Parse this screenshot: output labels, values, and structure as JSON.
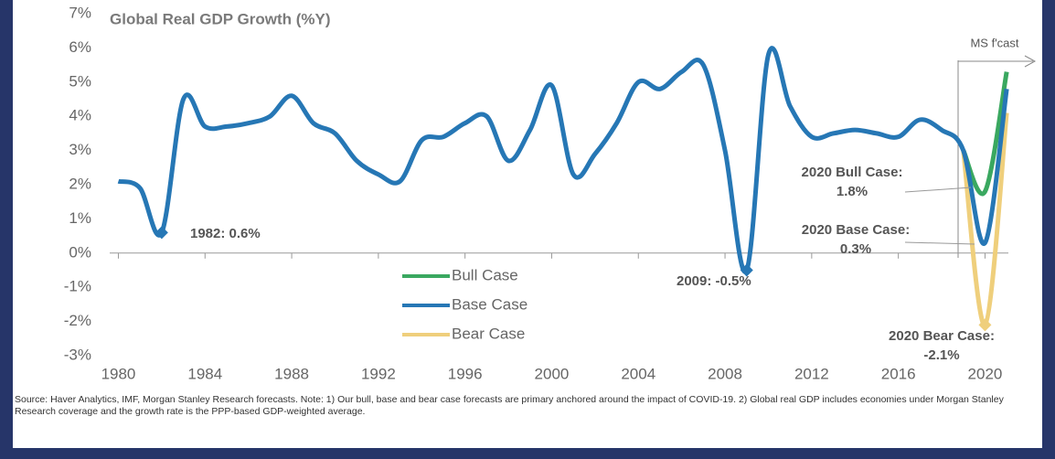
{
  "chart_data": {
    "type": "line",
    "title": "Global Real GDP Growth (%Y)",
    "x": [
      1980,
      1981,
      1982,
      1983,
      1984,
      1985,
      1986,
      1987,
      1988,
      1989,
      1990,
      1991,
      1992,
      1993,
      1994,
      1995,
      1996,
      1997,
      1998,
      1999,
      2000,
      2001,
      2002,
      2003,
      2004,
      2005,
      2006,
      2007,
      2008,
      2009,
      2010,
      2011,
      2012,
      2013,
      2014,
      2015,
      2016,
      2017,
      2018,
      2019,
      2020,
      2021
    ],
    "series": [
      {
        "name": "Bull Case",
        "color": "#3aa860",
        "values": [
          null,
          null,
          null,
          null,
          null,
          null,
          null,
          null,
          null,
          null,
          null,
          null,
          null,
          null,
          null,
          null,
          null,
          null,
          null,
          null,
          null,
          null,
          null,
          null,
          null,
          null,
          null,
          null,
          null,
          null,
          null,
          null,
          null,
          null,
          null,
          null,
          null,
          null,
          null,
          3.0,
          1.8,
          5.3
        ]
      },
      {
        "name": "Base Case",
        "color": "#2677b5",
        "values": [
          2.1,
          1.9,
          0.6,
          4.5,
          3.7,
          3.7,
          3.8,
          4.0,
          4.6,
          3.8,
          3.5,
          2.7,
          2.3,
          2.1,
          3.3,
          3.4,
          3.8,
          4.0,
          2.7,
          3.6,
          4.9,
          2.3,
          2.9,
          3.8,
          5.0,
          4.8,
          5.3,
          5.5,
          3.0,
          -0.5,
          5.8,
          4.3,
          3.4,
          3.5,
          3.6,
          3.5,
          3.4,
          3.9,
          3.6,
          3.0,
          0.3,
          4.8
        ]
      },
      {
        "name": "Bear Case",
        "color": "#efcf7c",
        "values": [
          null,
          null,
          null,
          null,
          null,
          null,
          null,
          null,
          null,
          null,
          null,
          null,
          null,
          null,
          null,
          null,
          null,
          null,
          null,
          null,
          null,
          null,
          null,
          null,
          null,
          null,
          null,
          null,
          null,
          null,
          null,
          null,
          null,
          null,
          null,
          null,
          null,
          null,
          null,
          3.0,
          -2.1,
          4.1
        ]
      }
    ],
    "xlim": [
      1979.6,
      2021.5
    ],
    "xticks": [
      1980,
      1984,
      1988,
      1992,
      1996,
      2000,
      2004,
      2008,
      2012,
      2016,
      2020
    ],
    "ylim": [
      -3,
      7
    ],
    "yticks": [
      {
        "value": 7,
        "label": "7%"
      },
      {
        "value": 6,
        "label": "6%"
      },
      {
        "value": 5,
        "label": "5%"
      },
      {
        "value": 4,
        "label": "4%"
      },
      {
        "value": 3,
        "label": "3%"
      },
      {
        "value": 2,
        "label": "2%"
      },
      {
        "value": 1,
        "label": "1%"
      },
      {
        "value": 0,
        "label": "0%"
      },
      {
        "value": -1,
        "label": "-1%"
      },
      {
        "value": -2,
        "label": "-2%"
      },
      {
        "value": -3,
        "label": "-3%"
      }
    ],
    "annotations": [
      {
        "lines": [
          "1982: 0.6%"
        ]
      },
      {
        "lines": [
          "2009: -0.5%"
        ]
      },
      {
        "lines": [
          "2020 Bull Case:",
          "1.8%"
        ]
      },
      {
        "lines": [
          "2020 Base Case:",
          "0.3%"
        ]
      },
      {
        "lines": [
          "2020 Bear Case:",
          "-2.1%"
        ]
      },
      {
        "lines": [
          "MS f'cast"
        ]
      }
    ],
    "source": "Source: Haver Analytics, IMF, Morgan Stanley Research forecasts. Note: 1) Our bull, base and bear case forecasts are primary anchored around the impact of COVID-19. 2) Global real GDP includes economies under Morgan Stanley Research coverage and the growth rate is the PPP-based GDP-weighted average."
  }
}
